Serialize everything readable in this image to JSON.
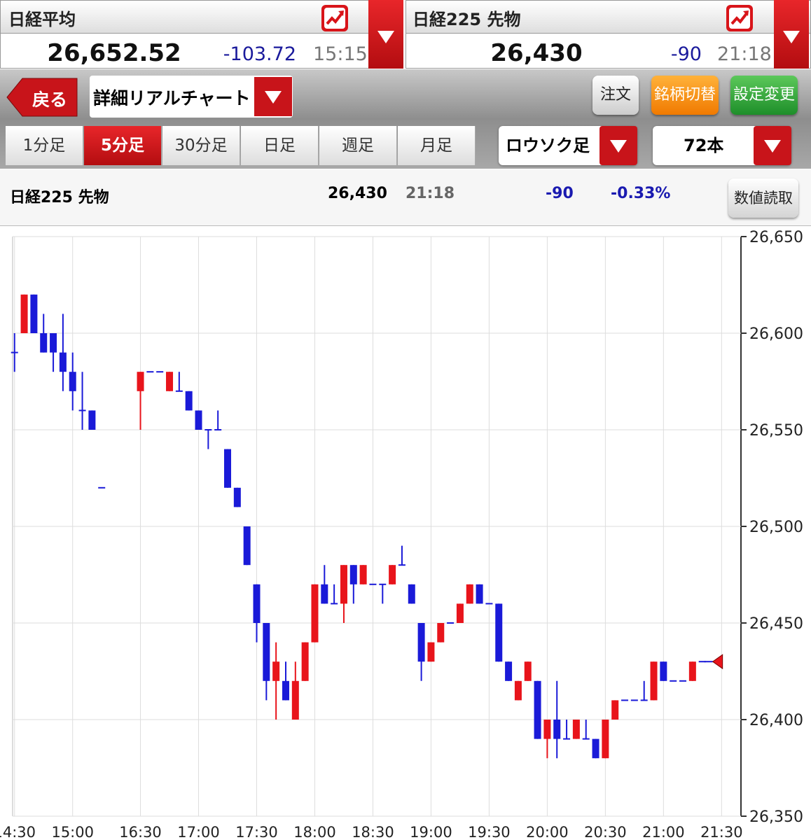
{
  "quotes": [
    {
      "name": "日経平均",
      "price": "26,652.52",
      "change": "-103.72",
      "time": "15:15"
    },
    {
      "name": "日経225 先物",
      "price": "26,430",
      "change": "-90",
      "time": "21:18"
    }
  ],
  "toolbar": {
    "back": "戻る",
    "chart_menu": "詳細リアルチャート",
    "buttons": [
      "注文",
      "銘柄切替",
      "設定変更"
    ]
  },
  "periods": {
    "tabs": [
      "1分足",
      "5分足",
      "30分足",
      "日足",
      "週足",
      "月足"
    ],
    "active": 1
  },
  "chart_style": "ロウソク足",
  "bar_count": "72本",
  "info": {
    "name": "日経225 先物",
    "price": "26,430",
    "time": "21:18",
    "change": "-90",
    "change_pct": "-0.33%",
    "button": "数値読取"
  },
  "chart_data": {
    "type": "candlestick",
    "up_color": "#e8141b",
    "down_color": "#1a1ad8",
    "x": [
      0,
      1,
      2,
      3,
      4,
      5,
      6,
      7,
      8,
      9,
      13,
      14,
      15,
      16,
      17,
      18,
      19,
      20,
      21,
      22,
      23,
      24,
      25,
      26,
      27,
      28,
      29,
      30,
      31,
      32,
      33,
      34,
      35,
      36,
      37,
      38,
      39,
      40,
      41,
      42,
      43,
      44,
      45,
      46,
      47,
      48,
      49,
      50,
      51,
      52,
      53,
      54,
      55,
      56,
      57,
      58,
      59,
      60,
      61,
      62,
      63,
      64,
      65,
      66,
      67,
      68,
      69,
      70,
      71
    ],
    "open": [
      26590,
      26600,
      26620,
      26600,
      26600,
      26590,
      26580,
      26560,
      26560,
      26520,
      26570,
      26580,
      26580,
      26570,
      26570,
      26570,
      26560,
      26550,
      26550,
      26540,
      26520,
      26500,
      26470,
      26450,
      26420,
      26420,
      26400,
      26420,
      26440,
      26470,
      26460,
      26460,
      26480,
      26470,
      26470,
      26470,
      26470,
      26480,
      26470,
      26450,
      26430,
      26440,
      26450,
      26450,
      26460,
      26470,
      26460,
      26460,
      26430,
      26410,
      26420,
      26420,
      26390,
      26400,
      26390,
      26390,
      26390,
      26390,
      26380,
      26400,
      26410,
      26410,
      26410,
      26410,
      26430,
      26420,
      26420,
      26420,
      26430
    ],
    "high": [
      26600,
      26620,
      26620,
      26610,
      26600,
      26610,
      26590,
      26580,
      26560,
      26520,
      26580,
      26580,
      26580,
      26580,
      26580,
      26570,
      26560,
      26550,
      26560,
      26540,
      26520,
      26500,
      26470,
      26450,
      26440,
      26430,
      26430,
      26440,
      26470,
      26480,
      26470,
      26480,
      26480,
      26480,
      26470,
      26470,
      26480,
      26490,
      26470,
      26450,
      26440,
      26450,
      26450,
      26460,
      26470,
      26470,
      26460,
      26460,
      26430,
      26420,
      26430,
      26420,
      26400,
      26420,
      26400,
      26400,
      26400,
      26390,
      26400,
      26410,
      26410,
      26410,
      26420,
      26430,
      26430,
      26420,
      26420,
      26430,
      26430
    ],
    "low": [
      26580,
      26600,
      26600,
      26590,
      26580,
      26570,
      26560,
      26550,
      26550,
      26520,
      26550,
      26580,
      26580,
      26570,
      26570,
      26560,
      26550,
      26540,
      26550,
      26520,
      26510,
      26480,
      26440,
      26410,
      26400,
      26410,
      26400,
      26420,
      26440,
      26460,
      26460,
      26450,
      26460,
      26470,
      26470,
      26460,
      26470,
      26480,
      26460,
      26420,
      26430,
      26440,
      26450,
      26450,
      26460,
      26460,
      26460,
      26430,
      26420,
      26410,
      26420,
      26390,
      26380,
      26380,
      26390,
      26390,
      26390,
      26380,
      26380,
      26400,
      26410,
      26410,
      26410,
      26410,
      26420,
      26420,
      26420,
      26420,
      26430
    ],
    "close": [
      26590,
      26620,
      26600,
      26590,
      26590,
      26580,
      26570,
      26560,
      26550,
      26520,
      26580,
      26580,
      26580,
      26580,
      26570,
      26560,
      26550,
      26550,
      26550,
      26520,
      26510,
      26480,
      26450,
      26420,
      26430,
      26410,
      26420,
      26440,
      26470,
      26460,
      26460,
      26480,
      26470,
      26480,
      26470,
      26470,
      26480,
      26480,
      26460,
      26430,
      26440,
      26450,
      26450,
      26460,
      26470,
      26460,
      26460,
      26430,
      26420,
      26420,
      26430,
      26390,
      26400,
      26390,
      26390,
      26400,
      26390,
      26380,
      26400,
      26410,
      26410,
      26410,
      26410,
      26430,
      26420,
      26420,
      26420,
      26430,
      26430
    ],
    "xlim": [
      -1.5,
      75
    ],
    "xticks": [
      {
        "value": 0,
        "label": "14:30"
      },
      {
        "value": 6,
        "label": "15:00"
      },
      {
        "value": 13,
        "label": "16:30"
      },
      {
        "value": 19,
        "label": "17:00"
      },
      {
        "value": 25,
        "label": "17:30"
      },
      {
        "value": 31,
        "label": "18:00"
      },
      {
        "value": 37,
        "label": "18:30"
      },
      {
        "value": 43,
        "label": "19:00"
      },
      {
        "value": 49,
        "label": "19:30"
      },
      {
        "value": 55,
        "label": "20:00"
      },
      {
        "value": 61,
        "label": "20:30"
      },
      {
        "value": 67,
        "label": "21:00"
      },
      {
        "value": 73,
        "label": "21:30"
      }
    ],
    "ylim": [
      26350,
      26650
    ],
    "yticks": [
      {
        "value": 26350,
        "label": "26,350"
      },
      {
        "value": 26400,
        "label": "26,400"
      },
      {
        "value": 26450,
        "label": "26,450"
      },
      {
        "value": 26500,
        "label": "26,500"
      },
      {
        "value": 26550,
        "label": "26,550"
      },
      {
        "value": 26600,
        "label": "26,600"
      },
      {
        "value": 26650,
        "label": "26,650"
      }
    ],
    "grid": true
  }
}
